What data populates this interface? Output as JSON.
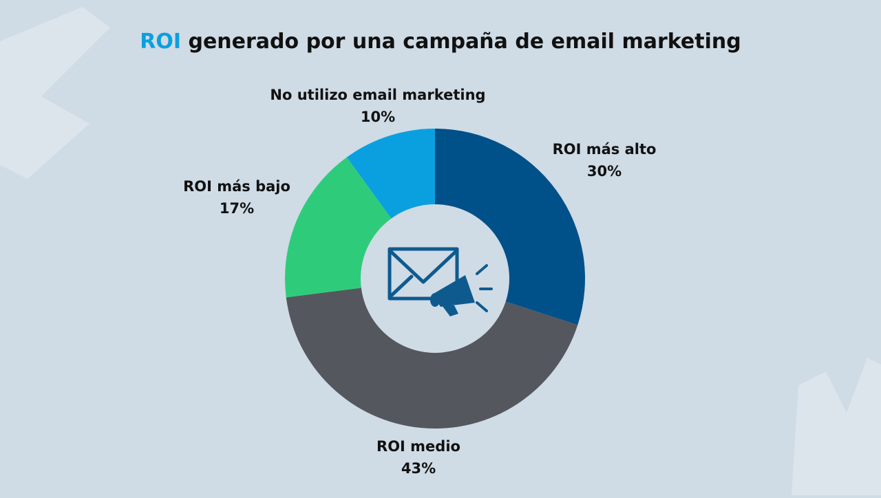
{
  "chart_data": {
    "type": "donut",
    "title": {
      "highlight": "ROI",
      "text": "generado por una campaña de email marketing"
    },
    "categories": [
      "ROI más alto",
      "ROI medio",
      "ROI más bajo",
      "No utilizo email marketing"
    ],
    "values": [
      30,
      43,
      17,
      10
    ],
    "value_labels": [
      "30%",
      "43%",
      "17%",
      "10%"
    ],
    "colors": [
      "#00508a",
      "#54575e",
      "#2ecc7a",
      "#0aa0e0"
    ]
  }
}
